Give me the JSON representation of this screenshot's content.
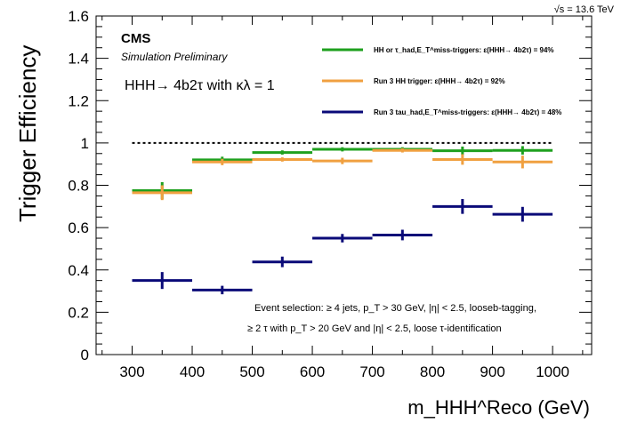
{
  "chart_data": {
    "type": "line",
    "top_right_label": "√s = 13.6 TeV",
    "experiment_label": "CMS",
    "experiment_sublabel": "Simulation Preliminary",
    "process_label": "HHH→ 4b2τ with κλ = 1",
    "xlabel": "m_HHH^Reco (GeV)",
    "ylabel": "Trigger Efficiency",
    "xlim": [
      240,
      1065
    ],
    "ylim": [
      0,
      1.6
    ],
    "x_ticks": [
      300,
      400,
      500,
      600,
      700,
      800,
      900,
      1000
    ],
    "y_ticks": [
      0,
      0.2,
      0.4,
      0.6,
      0.8,
      1,
      1.2,
      1.4,
      1.6
    ],
    "y_tick_labels": [
      "0",
      "0.2",
      "0.4",
      "0.6",
      "0.8",
      "1",
      "1.2",
      "1.4",
      "1.6"
    ],
    "reference_line": {
      "y": 1.0,
      "x_range": [
        300,
        1000
      ],
      "style": "dotted"
    },
    "bins": [
      [
        300,
        400
      ],
      [
        400,
        500
      ],
      [
        500,
        600
      ],
      [
        600,
        700
      ],
      [
        700,
        800
      ],
      [
        800,
        900
      ],
      [
        900,
        1000
      ]
    ],
    "series": [
      {
        "name": "HH or τ_had,E_T^miss-triggers: ε(HHH→ 4b2τ) = 94%",
        "color": "#1ea01e",
        "values": [
          0.775,
          0.92,
          0.955,
          0.97,
          0.97,
          0.963,
          0.965
        ],
        "errors": [
          0.04,
          0.015,
          0.01,
          0.01,
          0.01,
          0.02,
          0.02
        ]
      },
      {
        "name": "Run 3 HH trigger: ε(HHH→ 4b2τ) = 92%",
        "color": "#f0a040",
        "values": [
          0.765,
          0.91,
          0.922,
          0.915,
          0.965,
          0.922,
          0.91
        ],
        "errors": [
          0.035,
          0.015,
          0.01,
          0.015,
          0.01,
          0.025,
          0.03
        ]
      },
      {
        "name": "Run 3 tau_had,E_T^miss-triggers: ε(HHH→ 4b2τ) = 48%",
        "color": "#0a0a78",
        "values": [
          0.35,
          0.305,
          0.438,
          0.55,
          0.565,
          0.7,
          0.663
        ],
        "errors": [
          0.04,
          0.02,
          0.025,
          0.02,
          0.025,
          0.035,
          0.035
        ]
      }
    ],
    "legend_placement": "top-right",
    "annotation_line1": "Event selection: ≥ 4 jets, p_T > 30 GeV, |η| < 2.5,  looseb-tagging,",
    "annotation_line2": "≥ 2 τ with p_T > 20 GeV and |η| < 2.5, loose τ-identification",
    "grid": false
  }
}
